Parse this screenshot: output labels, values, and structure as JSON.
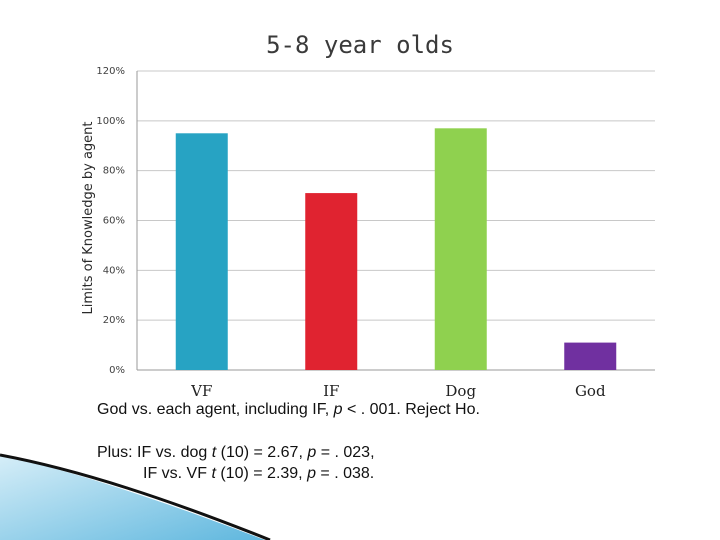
{
  "chart_data": {
    "type": "bar",
    "title": "5-8 year olds",
    "xlabel": "",
    "ylabel": "Limits of Knowledge by agent",
    "categories": [
      "VF",
      "IF",
      "Dog",
      "God"
    ],
    "values": [
      95,
      71,
      97,
      11
    ],
    "colors": [
      "#27a3c3",
      "#e02330",
      "#8fd14f",
      "#7030a0"
    ],
    "ylim": [
      0,
      120
    ],
    "yticks": [
      0,
      20,
      40,
      60,
      80,
      100,
      120
    ],
    "ytick_labels": [
      "0%",
      "20%",
      "40%",
      "60%",
      "80%",
      "100%",
      "120%"
    ],
    "grid": true
  },
  "notes": {
    "line1_pre": "God vs. each agent, including IF, ",
    "line1_p": "p",
    "line1_post": " < . 001.  Reject Ho.",
    "line2_pre": "Plus: IF vs. dog ",
    "line2_t": "t",
    "line2_mid": " (10) = 2.67, ",
    "line2_p": "p",
    "line2_post": " = . 023,",
    "line3_pre": "IF vs. VF ",
    "line3_t": "t",
    "line3_mid": " (10) = 2.39, ",
    "line3_p": "p",
    "line3_post": " = . 038."
  }
}
